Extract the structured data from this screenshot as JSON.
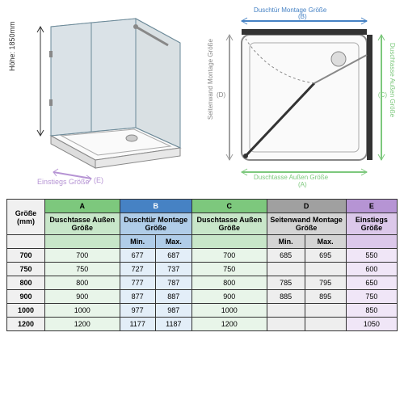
{
  "diagram3d": {
    "height_label": "Höhe: 1850mm",
    "entry_label": "Einstiegs Größe",
    "entry_letter": "(E)"
  },
  "diagramTop": {
    "top_label": "Duschtür Montage Größe",
    "top_letter": "(B)",
    "right_label": "Duschtasse Außen Größe",
    "right_letter": "(C)",
    "left_label": "Seitenwand Montage Größe",
    "left_letter": "(D)",
    "bottom_label": "Duschtasse Außen Größe",
    "bottom_letter": "(A)"
  },
  "table": {
    "col_size": "Größe (mm)",
    "col_a_letter": "A",
    "col_a": "Duschtasse Außen Größe",
    "col_b_letter": "B",
    "col_b": "Duschtür Montage Größe",
    "col_b_min": "Min.",
    "col_b_max": "Max.",
    "col_c_letter": "C",
    "col_c": "Duschtasse Außen Größe",
    "col_d_letter": "D",
    "col_d": "Seitenwand Montage Größe",
    "col_d_min": "Min.",
    "col_d_max": "Max.",
    "col_e_letter": "E",
    "col_e": "Einstiegs Größe",
    "rows": [
      {
        "size": "700",
        "a": "700",
        "bmin": "677",
        "bmax": "687",
        "c": "700",
        "dmin": "685",
        "dmax": "695",
        "e": "550"
      },
      {
        "size": "750",
        "a": "750",
        "bmin": "727",
        "bmax": "737",
        "c": "750",
        "dmin": "",
        "dmax": "",
        "e": "600"
      },
      {
        "size": "800",
        "a": "800",
        "bmin": "777",
        "bmax": "787",
        "c": "800",
        "dmin": "785",
        "dmax": "795",
        "e": "650"
      },
      {
        "size": "900",
        "a": "900",
        "bmin": "877",
        "bmax": "887",
        "c": "900",
        "dmin": "885",
        "dmax": "895",
        "e": "750"
      },
      {
        "size": "1000",
        "a": "1000",
        "bmin": "977",
        "bmax": "987",
        "c": "1000",
        "dmin": "",
        "dmax": "",
        "e": "850"
      },
      {
        "size": "1200",
        "a": "1200",
        "bmin": "1177",
        "bmax": "1187",
        "c": "1200",
        "dmin": "",
        "dmax": "",
        "e": "1050"
      }
    ]
  },
  "colors": {
    "green": "#7dc87d",
    "blue": "#4682c4",
    "grey": "#a0a0a0",
    "purple": "#b694d4",
    "light_green": "#c8e6c9",
    "light_blue": "#b0cde8",
    "light_grey": "#d4d4d4",
    "light_purple": "#dcc8ea"
  }
}
